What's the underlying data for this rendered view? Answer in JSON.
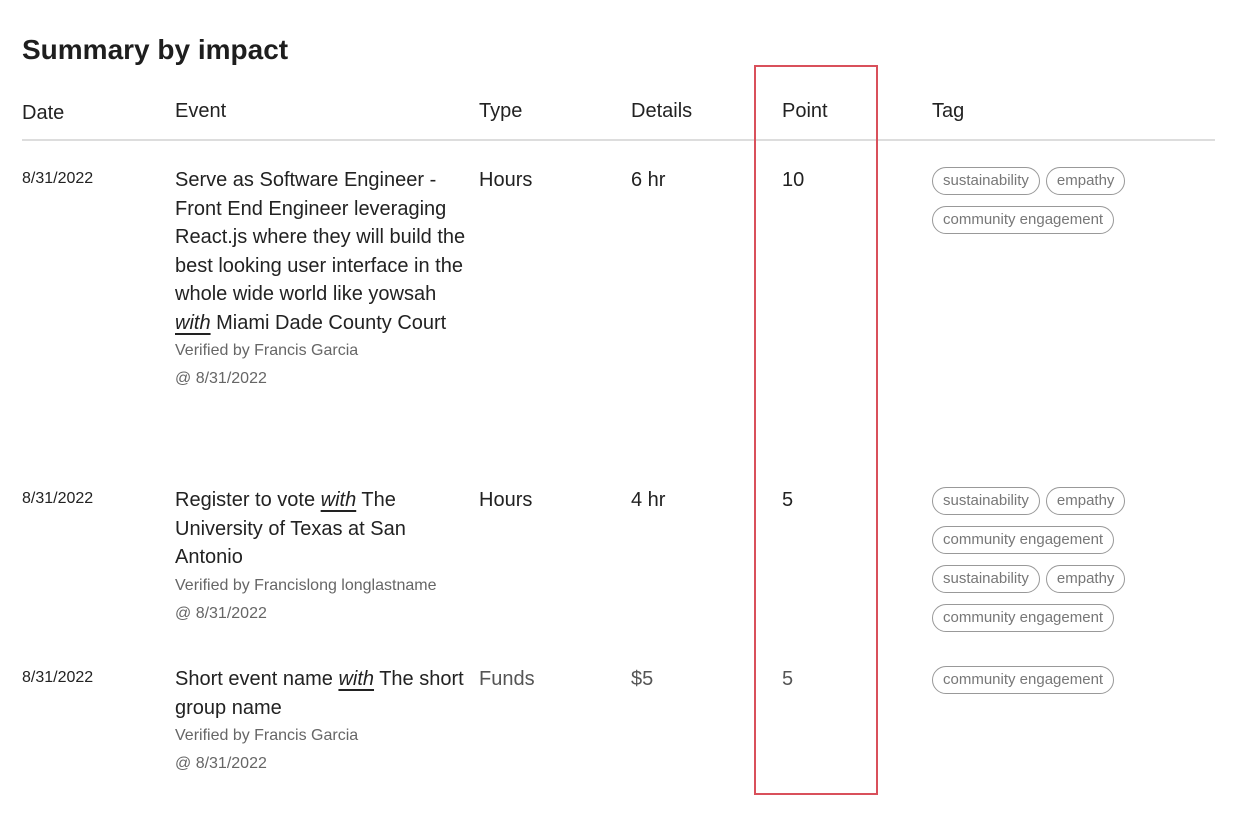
{
  "title": "Summary by impact",
  "columns": [
    "Date",
    "Event",
    "Type",
    "Details",
    "Point",
    "Tag"
  ],
  "highlight_color": "#d9505b",
  "rows": [
    {
      "date": "8/31/2022",
      "event_name": "Serve as Software Engineer - Front End Engineer leveraging React.js where they will build the best looking user interface in the whole wide world like yowsah",
      "with": "with",
      "group": "Miami Dade County Court",
      "verified_by": "Verified by Francis Garcia",
      "verified_at": "@ 8/31/2022",
      "type": "Hours",
      "details": "6 hr",
      "point": "10",
      "tags": [
        "sustainability",
        "empathy",
        "community engagement"
      ]
    },
    {
      "date": "8/31/2022",
      "event_name": "Register to vote",
      "with": "with",
      "group": "The University of Texas at San Antonio",
      "verified_by": "Verified by Francislong longlastname",
      "verified_at": "@ 8/31/2022",
      "type": "Hours",
      "details": "4 hr",
      "point": "5",
      "tags": [
        "sustainability",
        "empathy",
        "community engagement",
        "sustainability",
        "empathy",
        "community engagement"
      ]
    },
    {
      "date": "8/31/2022",
      "event_name": "Short event name",
      "with": "with",
      "group": "The short group name",
      "verified_by": "Verified by Francis Garcia",
      "verified_at": "@ 8/31/2022",
      "type": "Funds",
      "details": "$5",
      "point": "5",
      "tags": [
        "community engagement"
      ]
    }
  ]
}
